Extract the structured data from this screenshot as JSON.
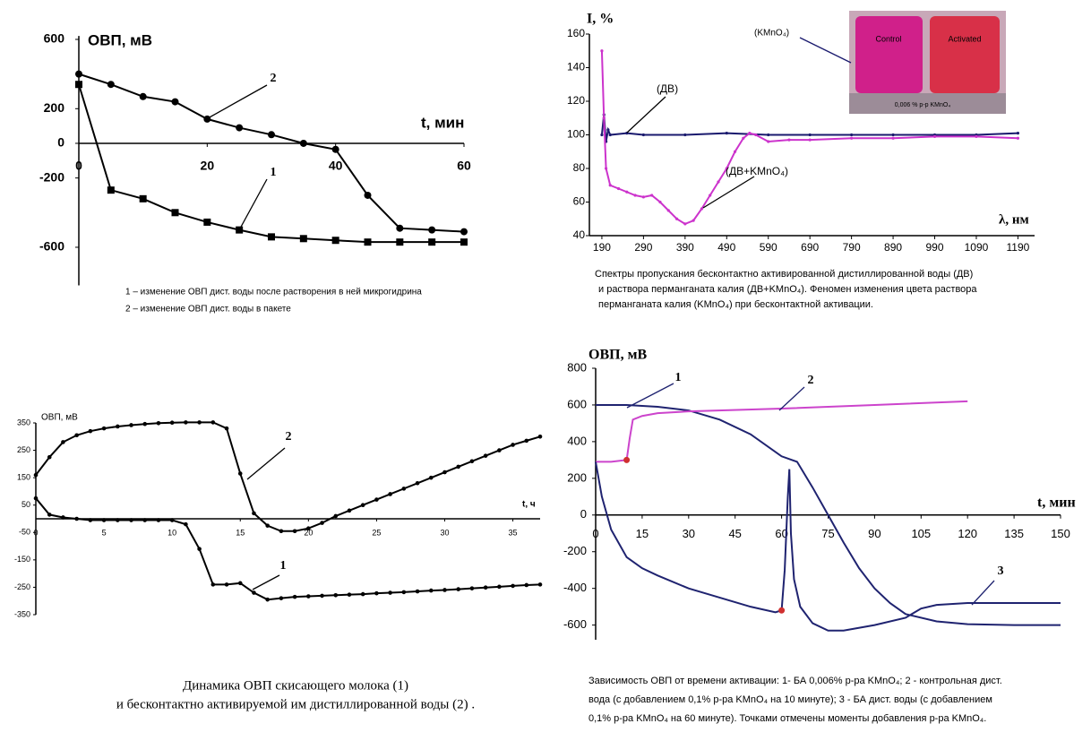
{
  "chart_data": [
    {
      "type": "line",
      "y_label": "ОВП, мВ",
      "x_label": "t, мин",
      "x": [
        0,
        5,
        10,
        15,
        20,
        25,
        30,
        35,
        40,
        45,
        50,
        55,
        60
      ],
      "xlim": [
        0,
        60
      ],
      "xticks": [
        0,
        20,
        40,
        60
      ],
      "ylim": [
        -820,
        620
      ],
      "yticks": [
        600,
        200,
        0,
        -200,
        -600
      ],
      "x_axis_at_zero": true,
      "grid": false,
      "series": [
        {
          "name": "1",
          "color": "#000000",
          "marker": "square",
          "values": [
            340,
            -270,
            -320,
            -400,
            -455,
            -500,
            -540,
            -550,
            -560,
            -570,
            -570,
            -570,
            -570
          ]
        },
        {
          "name": "2",
          "color": "#000000",
          "marker": "circle",
          "values": [
            400,
            340,
            270,
            240,
            140,
            90,
            50,
            0,
            -35,
            -300,
            -490,
            -500,
            -510
          ]
        }
      ],
      "legend": [
        "1 – изменение ОВП дист. воды после растворения в ней микрогидрина",
        "2 – изменение ОВП дист. воды в пакете"
      ]
    },
    {
      "type": "line",
      "y_label": "I, %",
      "x_label": "λ, нм",
      "xlim": [
        160,
        1230
      ],
      "xticks": [
        190,
        290,
        390,
        490,
        590,
        690,
        790,
        890,
        990,
        1090,
        1190
      ],
      "ylim": [
        40,
        160
      ],
      "yticks": [
        40,
        60,
        80,
        100,
        120,
        140,
        160
      ],
      "x_axis_at_zero": false,
      "grid": false,
      "series": [
        {
          "name": "(ДВ)",
          "color": "#1a1a6e",
          "marker": "dot",
          "x": [
            190,
            195,
            200,
            205,
            210,
            250,
            290,
            390,
            490,
            590,
            690,
            790,
            890,
            990,
            1090,
            1190
          ],
          "values": [
            100,
            112,
            96,
            103,
            100,
            101,
            100,
            100,
            101,
            100,
            100,
            100,
            100,
            100,
            100,
            101
          ]
        },
        {
          "name": "(ДВ+KMnO₄)",
          "color": "#cc33cc",
          "marker": "dot",
          "x": [
            190,
            195,
            200,
            210,
            230,
            250,
            270,
            290,
            310,
            330,
            350,
            370,
            390,
            410,
            430,
            450,
            470,
            490,
            510,
            530,
            545,
            560,
            590,
            640,
            690,
            790,
            890,
            990,
            1090,
            1190
          ],
          "values": [
            150,
            110,
            80,
            70,
            68,
            66,
            64,
            63,
            64,
            60,
            55,
            50,
            47,
            49,
            56,
            64,
            72,
            80,
            90,
            98,
            101,
            100,
            96,
            97,
            97,
            98,
            98,
            99,
            99,
            98
          ]
        }
      ],
      "annotation": "(KMnO₄)",
      "photo_labels": [
        "Control",
        "Activated",
        "0,006 % p-p KMnO₄"
      ],
      "caption": [
        "Спектры пропускания бесконтактно активированной дистиллированной воды (ДВ)",
        "и раствора перманганата калия (ДВ+KMnO₄).  Феномен изменения цвета раствора",
        "перманганата калия (KMnO₄) при бесконтактной активации."
      ]
    },
    {
      "type": "line",
      "y_label": "ОВП, мВ",
      "x_label": "t, ч",
      "x": [
        0,
        1,
        2,
        3,
        4,
        5,
        6,
        7,
        8,
        9,
        10,
        11,
        12,
        13,
        14,
        15,
        16,
        17,
        18,
        19,
        20,
        21,
        22,
        23,
        24,
        25,
        26,
        27,
        28,
        29,
        30,
        31,
        32,
        33,
        34,
        35,
        36,
        37
      ],
      "xlim": [
        0,
        37
      ],
      "xticks": [
        0,
        5,
        10,
        15,
        20,
        25,
        30,
        35
      ],
      "ylim": [
        -350,
        350
      ],
      "yticks": [
        350,
        250,
        150,
        50,
        -50,
        -150,
        -250,
        -350
      ],
      "x_axis_at_zero": true,
      "grid": false,
      "series": [
        {
          "name": "1",
          "color": "#000000",
          "marker": "dot",
          "values": [
            75,
            15,
            5,
            0,
            -5,
            -5,
            -5,
            -5,
            -5,
            -5,
            -5,
            -20,
            -110,
            -240,
            -240,
            -235,
            -270,
            -295,
            -290,
            -285,
            -283,
            -281,
            -279,
            -277,
            -275,
            -272,
            -270,
            -268,
            -265,
            -262,
            -260,
            -257,
            -254,
            -251,
            -248,
            -245,
            -242,
            -240
          ]
        },
        {
          "name": "2",
          "color": "#000000",
          "marker": "dot",
          "values": [
            160,
            225,
            280,
            305,
            320,
            330,
            337,
            342,
            346,
            349,
            351,
            352,
            352,
            352,
            330,
            165,
            20,
            -25,
            -45,
            -45,
            -35,
            -15,
            10,
            30,
            50,
            70,
            90,
            110,
            130,
            150,
            170,
            190,
            210,
            230,
            250,
            270,
            285,
            300
          ]
        }
      ],
      "caption": [
        "Динамика ОВП скисающего молока (1)",
        "и бесконтактно активируемой им дистиллированной воды (2) ."
      ]
    },
    {
      "type": "line",
      "y_label": "ОВП, мВ",
      "x_label": "t, мин",
      "xlim": [
        0,
        150
      ],
      "xticks": [
        0,
        15,
        30,
        45,
        60,
        75,
        90,
        105,
        120,
        135,
        150
      ],
      "ylim": [
        -680,
        800
      ],
      "yticks": [
        800,
        600,
        400,
        200,
        0,
        -200,
        -400,
        -600
      ],
      "x_axis_at_zero": true,
      "grid": false,
      "highlight_color": "#d03030",
      "series": [
        {
          "name": "1",
          "color": "#1f2370",
          "marker": null,
          "x": [
            0,
            10,
            20,
            30,
            40,
            50,
            60,
            65,
            70,
            75,
            80,
            85,
            90,
            95,
            100,
            110,
            120,
            135,
            150
          ],
          "values": [
            600,
            600,
            590,
            570,
            520,
            440,
            320,
            290,
            150,
            0,
            -150,
            -290,
            -400,
            -480,
            -540,
            -580,
            -595,
            -600,
            -600
          ]
        },
        {
          "name": "2",
          "color": "#cc44cc",
          "marker": null,
          "highlight_x": [
            10
          ],
          "x": [
            0,
            5,
            10,
            11,
            12,
            15,
            20,
            30,
            60,
            90,
            120
          ],
          "values": [
            290,
            290,
            300,
            420,
            520,
            540,
            555,
            565,
            580,
            600,
            620
          ]
        },
        {
          "name": "3",
          "color": "#1f2370",
          "marker": null,
          "highlight_x": [
            60
          ],
          "x": [
            0,
            2,
            5,
            10,
            15,
            20,
            30,
            40,
            50,
            58,
            60,
            61,
            62,
            62.5,
            63,
            64,
            66,
            70,
            75,
            80,
            90,
            100,
            105,
            110,
            120,
            150
          ],
          "values": [
            290,
            100,
            -80,
            -230,
            -290,
            -330,
            -400,
            -450,
            -500,
            -530,
            -520,
            -300,
            100,
            250,
            -100,
            -350,
            -500,
            -590,
            -630,
            -630,
            -600,
            -560,
            -510,
            -490,
            -480,
            -480
          ]
        }
      ],
      "caption": [
        "Зависимость ОВП от времени активации: 1- БА 0,006% р-ра KMnO₄; 2 - контрольная дист.",
        "вода (с добавлением 0,1% р-ра KMnO₄ на 10  минуте); 3 - БА дист. воды (с добавлением",
        "0,1% р-ра KMnO₄ на 60 минуте). Точками  отмечены моменты добавления р-ра KMnO₄."
      ]
    }
  ]
}
